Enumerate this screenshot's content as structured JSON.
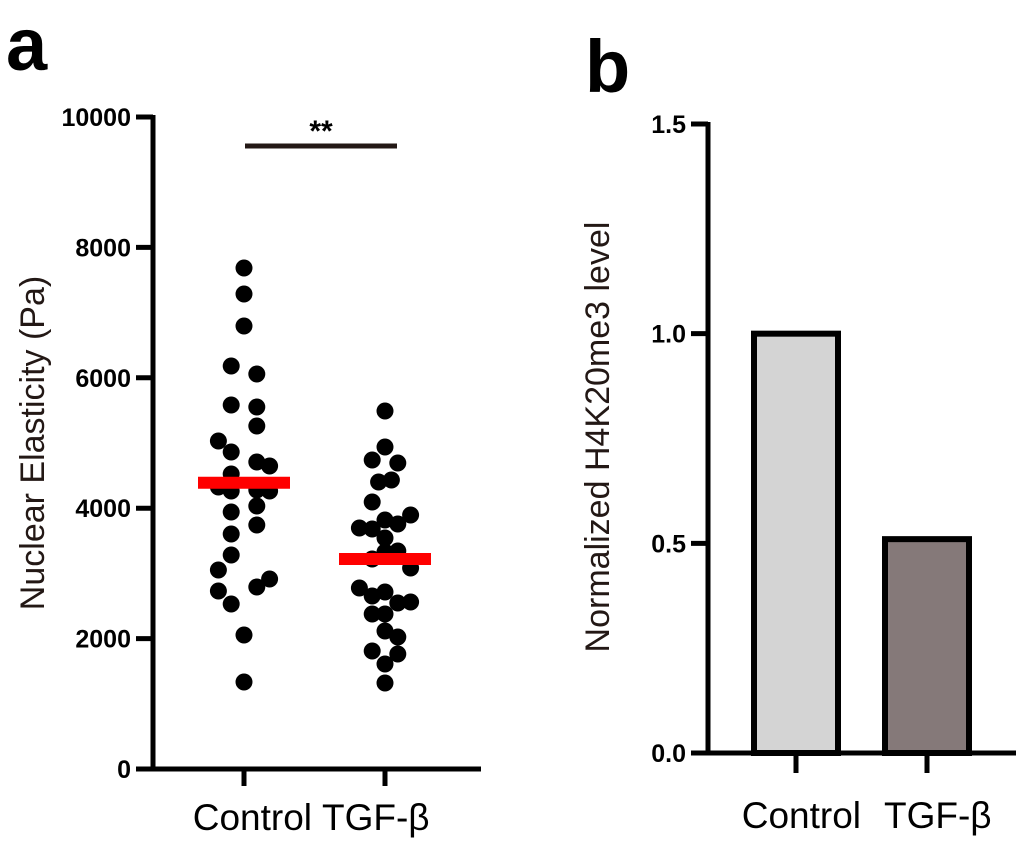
{
  "chart_data": [
    {
      "panel": "a",
      "type": "scatter",
      "title": "",
      "xlabel": "",
      "ylabel": "Nuclear Elasticity (Pa)",
      "categories": [
        "Control",
        "TGF-β"
      ],
      "ylim": [
        0,
        10000
      ],
      "yticks": [
        0,
        2000,
        4000,
        6000,
        8000,
        10000
      ],
      "ytick_labels": [
        "0",
        "2000",
        "4000",
        "6000",
        "8000",
        "10000"
      ],
      "grid": false,
      "legend": "none",
      "series": [
        {
          "name": "Control",
          "values": [
            7684,
            7285,
            6794,
            6181,
            6058,
            5583,
            5552,
            5261,
            5031,
            4862,
            4709,
            4647,
            4525,
            4325,
            4279,
            4264,
            4264,
            4034,
            3942,
            3742,
            3604,
            3282,
            3052,
            2914,
            2791,
            2730,
            2531,
            2055,
            1334
          ],
          "jitter": [
            0,
            0,
            0,
            -1,
            1,
            -1,
            1,
            1,
            -2,
            -1,
            1,
            2,
            -1,
            -2,
            1,
            -1,
            2,
            1,
            -1,
            1,
            -1,
            -1,
            -2,
            2,
            1,
            -2,
            -1,
            0,
            0
          ],
          "mean": 4390,
          "color": "#000000",
          "mean_color": "#ff0000"
        },
        {
          "name": "TGF-β",
          "values": [
            5491,
            4939,
            4739,
            4693,
            4433,
            4402,
            4095,
            3896,
            3819,
            3758,
            3696,
            3681,
            3543,
            3344,
            3328,
            3221,
            3083,
            2776,
            2715,
            2653,
            2561,
            2546,
            2377,
            2377,
            2117,
            2025,
            1810,
            1764,
            1610,
            1319
          ],
          "jitter": [
            0,
            0,
            -1,
            1,
            0.5,
            -0.5,
            -1,
            2,
            0,
            1,
            -2,
            -1,
            0,
            1,
            0,
            -1,
            2,
            -2,
            0,
            -1,
            2,
            1,
            -1,
            0,
            0,
            1,
            -1,
            1,
            0,
            0
          ],
          "mean": 3220,
          "color": "#000000",
          "mean_color": "#ff0000"
        }
      ],
      "annotations": [
        {
          "text": "**",
          "between": [
            "Control",
            "TGF-β"
          ],
          "y": 9600
        }
      ]
    },
    {
      "panel": "b",
      "type": "bar",
      "title": "",
      "xlabel": "",
      "ylabel": "Normalized H4K20me3 level",
      "categories": [
        "Control",
        "TGF-β"
      ],
      "values": [
        1.0,
        0.51
      ],
      "colors": [
        "#d4d4d4",
        "#857979"
      ],
      "ylim": [
        0,
        1.5
      ],
      "yticks": [
        0,
        0.5,
        1.0,
        1.5
      ],
      "ytick_labels": [
        "0.0",
        "0.5",
        "1.0",
        "1.5"
      ],
      "grid": false,
      "legend": "none"
    }
  ],
  "panels": {
    "a": {
      "label": "a"
    },
    "b": {
      "label": "b"
    }
  }
}
